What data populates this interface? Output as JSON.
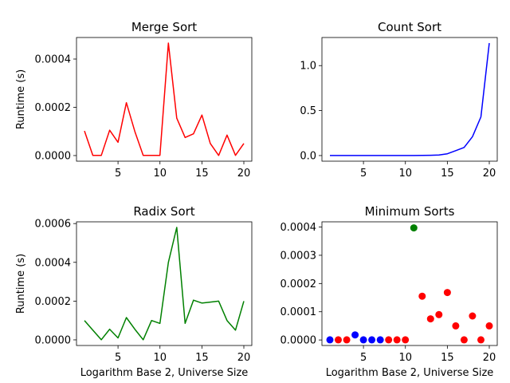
{
  "chart_data": [
    {
      "type": "line",
      "title": "Merge Sort",
      "xlabel": "",
      "ylabel": "Runtime (s)",
      "color": "#ff0000",
      "x": [
        1,
        2,
        3,
        4,
        5,
        6,
        7,
        8,
        9,
        10,
        11,
        12,
        13,
        14,
        15,
        16,
        17,
        18,
        19,
        20
      ],
      "values": [
        0.000102,
        5e-07,
        5e-07,
        0.000105,
        5.5e-05,
        0.000219,
        0.0001,
        1e-06,
        1e-06,
        1e-06,
        0.000466,
        0.000155,
        7.5e-05,
        9e-05,
        0.000168,
        5e-05,
        5e-07,
        8.5e-05,
        1e-06,
        5e-05
      ],
      "xlim": [
        0.05,
        20.95
      ],
      "ylim": [
        -2.33e-05,
        0.0004893
      ],
      "xticks": [
        5,
        10,
        15,
        20
      ],
      "xtick_labels": [
        "5",
        "10",
        "15",
        "20"
      ],
      "yticks": [
        0,
        0.0002,
        0.0004
      ],
      "ytick_labels": [
        "0.0000",
        "0.0002",
        "0.0004"
      ]
    },
    {
      "type": "line",
      "title": "Count Sort",
      "xlabel": "",
      "ylabel": "",
      "color": "#0000ff",
      "x": [
        1,
        2,
        3,
        4,
        5,
        6,
        7,
        8,
        9,
        10,
        11,
        12,
        13,
        14,
        15,
        16,
        17,
        18,
        19,
        20
      ],
      "values": [
        0.0001,
        0.0001,
        0.0001,
        0.0001,
        0.0001,
        0.0001,
        0.0002,
        0.0002,
        0.0003,
        0.0005,
        0.0008,
        0.0015,
        0.003,
        0.006,
        0.02,
        0.055,
        0.09,
        0.21,
        0.43,
        1.25
      ],
      "xlim": [
        0.05,
        20.95
      ],
      "ylim": [
        -0.0625,
        1.3125
      ],
      "xticks": [
        5,
        10,
        15,
        20
      ],
      "xtick_labels": [
        "5",
        "10",
        "15",
        "20"
      ],
      "yticks": [
        0,
        0.5,
        1.0
      ],
      "ytick_labels": [
        "0.0",
        "0.5",
        "1.0"
      ]
    },
    {
      "type": "line",
      "title": "Radix Sort",
      "xlabel": "Logarithm Base 2, Universe Size",
      "ylabel": "Runtime (s)",
      "color": "#008000",
      "x": [
        1,
        2,
        3,
        4,
        5,
        6,
        7,
        8,
        9,
        10,
        11,
        12,
        13,
        14,
        15,
        16,
        17,
        18,
        19,
        20
      ],
      "values": [
        0.0001,
        5e-05,
        5e-07,
        5.5e-05,
        1e-05,
        0.000115,
        5.5e-05,
        5e-07,
        0.0001,
        8.5e-05,
        0.0004,
        0.00058,
        8.5e-05,
        0.000205,
        0.00019,
        0.000195,
        0.0002,
        0.0001,
        5e-05,
        0.0002
      ],
      "xlim": [
        0.05,
        20.95
      ],
      "ylim": [
        -2.9e-05,
        0.000609
      ],
      "xticks": [
        5,
        10,
        15,
        20
      ],
      "xtick_labels": [
        "5",
        "10",
        "15",
        "20"
      ],
      "yticks": [
        0,
        0.0002,
        0.0004,
        0.0006
      ],
      "ytick_labels": [
        "0.0000",
        "0.0002",
        "0.0004",
        "0.0006"
      ]
    },
    {
      "type": "scatter",
      "title": "Minimum Sorts",
      "xlabel": "Logarithm Base 2, Universe Size",
      "ylabel": "",
      "x": [
        1,
        2,
        3,
        4,
        5,
        6,
        7,
        8,
        9,
        10,
        11,
        12,
        13,
        14,
        15,
        16,
        17,
        18,
        19,
        20
      ],
      "values": [
        5e-07,
        5e-07,
        5e-07,
        1.8e-05,
        5e-07,
        5e-07,
        5e-07,
        5e-07,
        5e-07,
        5e-07,
        0.000397,
        0.000155,
        7.5e-05,
        9e-05,
        0.000168,
        5e-05,
        5e-07,
        8.5e-05,
        5e-07,
        5e-05
      ],
      "colors": [
        "#0000ff",
        "#ff0000",
        "#ff0000",
        "#0000ff",
        "#0000ff",
        "#0000ff",
        "#0000ff",
        "#ff0000",
        "#ff0000",
        "#ff0000",
        "#008000",
        "#ff0000",
        "#ff0000",
        "#ff0000",
        "#ff0000",
        "#ff0000",
        "#ff0000",
        "#ff0000",
        "#ff0000",
        "#ff0000"
      ],
      "xlim": [
        0.05,
        20.95
      ],
      "ylim": [
        -1.95e-05,
        0.0004185
      ],
      "xticks": [
        5,
        10,
        15,
        20
      ],
      "xtick_labels": [
        "5",
        "10",
        "15",
        "20"
      ],
      "yticks": [
        0,
        0.0001,
        0.0002,
        0.0003,
        0.0004
      ],
      "ytick_labels": [
        "0.0000",
        "0.0001",
        "0.0002",
        "0.0003",
        "0.0004"
      ]
    }
  ]
}
